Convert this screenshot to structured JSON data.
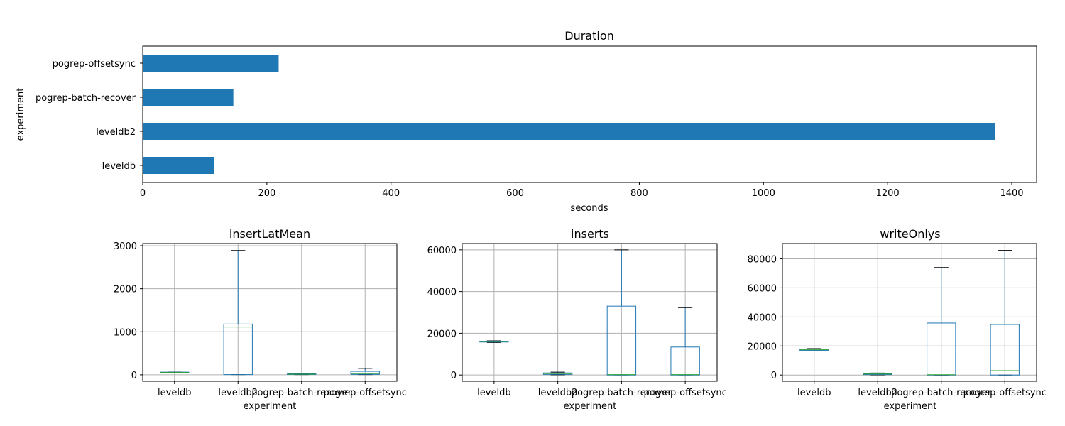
{
  "chart_data": [
    {
      "type": "barh",
      "title": "Duration",
      "xlabel": "seconds",
      "ylabel": "experiment",
      "categories": [
        "leveldb",
        "leveldb2",
        "pogrep-batch-recover",
        "pogrep-offsetsync"
      ],
      "values": [
        115,
        1373,
        146,
        219
      ],
      "xlim": [
        0,
        1440
      ],
      "xticks": [
        0,
        200,
        400,
        600,
        800,
        1000,
        1200,
        1400
      ],
      "color": "#1f77b4",
      "grid": false
    },
    {
      "type": "box",
      "title": "insertLatMean",
      "xlabel": "experiment",
      "ylabel": "",
      "categories": [
        "leveldb",
        "leveldb2",
        "pogrep-batch-recover",
        "pogrep-offsetsync"
      ],
      "ylim": [
        -150,
        3050
      ],
      "yticks": [
        0,
        1000,
        2000,
        3000
      ],
      "boxes": [
        {
          "whislo": 45,
          "q1": 50,
          "med": 55,
          "q3": 62,
          "whishi": 65
        },
        {
          "whislo": 5,
          "q1": 5,
          "med": 1110,
          "q3": 1180,
          "whishi": 2890
        },
        {
          "whislo": 5,
          "q1": 10,
          "med": 15,
          "q3": 25,
          "whishi": 35
        },
        {
          "whislo": 5,
          "q1": 10,
          "med": 30,
          "q3": 80,
          "whishi": 150
        }
      ],
      "box_color": "#1f77b4",
      "median_color": "#2ca02c",
      "grid": true
    },
    {
      "type": "box",
      "title": "inserts",
      "xlabel": "experiment",
      "ylabel": "",
      "categories": [
        "leveldb",
        "leveldb2",
        "pogrep-batch-recover",
        "pogrep-offsetsync"
      ],
      "ylim": [
        -3000,
        63000
      ],
      "yticks": [
        0,
        20000,
        40000,
        60000
      ],
      "boxes": [
        {
          "whislo": 15600,
          "q1": 15800,
          "med": 16000,
          "q3": 16200,
          "whishi": 16400
        },
        {
          "whislo": 100,
          "q1": 300,
          "med": 700,
          "q3": 1000,
          "whishi": 1400
        },
        {
          "whislo": 0,
          "q1": 0,
          "med": 200,
          "q3": 33000,
          "whishi": 60000
        },
        {
          "whislo": 0,
          "q1": 0,
          "med": 200,
          "q3": 13400,
          "whishi": 32300
        }
      ],
      "box_color": "#1f77b4",
      "median_color": "#2ca02c",
      "grid": true
    },
    {
      "type": "box",
      "title": "writeOnlys",
      "xlabel": "experiment",
      "ylabel": "",
      "categories": [
        "leveldb",
        "leveldb2",
        "pogrep-batch-recover",
        "pogrep-offsetsync"
      ],
      "ylim": [
        -4300,
        90500
      ],
      "yticks": [
        0,
        20000,
        40000,
        60000,
        80000
      ],
      "boxes": [
        {
          "whislo": 16500,
          "q1": 17000,
          "med": 17500,
          "q3": 17900,
          "whishi": 18200
        },
        {
          "whislo": 100,
          "q1": 300,
          "med": 700,
          "q3": 1000,
          "whishi": 1400
        },
        {
          "whislo": 0,
          "q1": 0,
          "med": 200,
          "q3": 35800,
          "whishi": 74000
        },
        {
          "whislo": 0,
          "q1": 0,
          "med": 3000,
          "q3": 34800,
          "whishi": 85800
        }
      ],
      "box_color": "#1f77b4",
      "median_color": "#2ca02c",
      "grid": true
    }
  ]
}
